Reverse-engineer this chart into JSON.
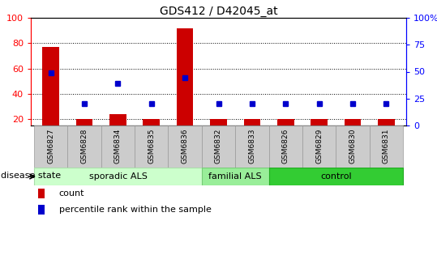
{
  "title": "GDS412 / D42045_at",
  "samples": [
    "GSM6827",
    "GSM6828",
    "GSM6834",
    "GSM6835",
    "GSM6836",
    "GSM6832",
    "GSM6833",
    "GSM6826",
    "GSM6829",
    "GSM6830",
    "GSM6831"
  ],
  "count_values": [
    77,
    20,
    24,
    20,
    92,
    20,
    20,
    20,
    20,
    20,
    20
  ],
  "percentile_values": [
    49,
    20,
    39,
    20,
    44,
    20,
    20,
    20,
    20,
    20,
    20
  ],
  "groups": [
    {
      "label": "sporadic ALS",
      "start": 0,
      "end": 5,
      "color": "#ccffcc",
      "edge_color": "#aaddaa"
    },
    {
      "label": "familial ALS",
      "start": 5,
      "end": 7,
      "color": "#99ee99",
      "edge_color": "#77cc77"
    },
    {
      "label": "control",
      "start": 7,
      "end": 11,
      "color": "#33cc33",
      "edge_color": "#22aa22"
    }
  ],
  "ylim_left": [
    15,
    100
  ],
  "ylim_right": [
    0,
    100
  ],
  "yticks_left": [
    20,
    40,
    60,
    80,
    100
  ],
  "yticks_right": [
    0,
    25,
    50,
    75,
    100
  ],
  "ytick_labels_right": [
    "0",
    "25",
    "50",
    "75",
    "100%"
  ],
  "bar_color": "#cc0000",
  "dot_color": "#0000cc",
  "background_color": "#ffffff",
  "header_color": "#cccccc",
  "header_edge_color": "#999999",
  "disease_state_label": "disease state",
  "legend_items": [
    {
      "label": "count",
      "color": "#cc0000"
    },
    {
      "label": "percentile rank within the sample",
      "color": "#0000cc"
    }
  ],
  "figure_width": 5.39,
  "figure_height": 3.36,
  "dpi": 100
}
